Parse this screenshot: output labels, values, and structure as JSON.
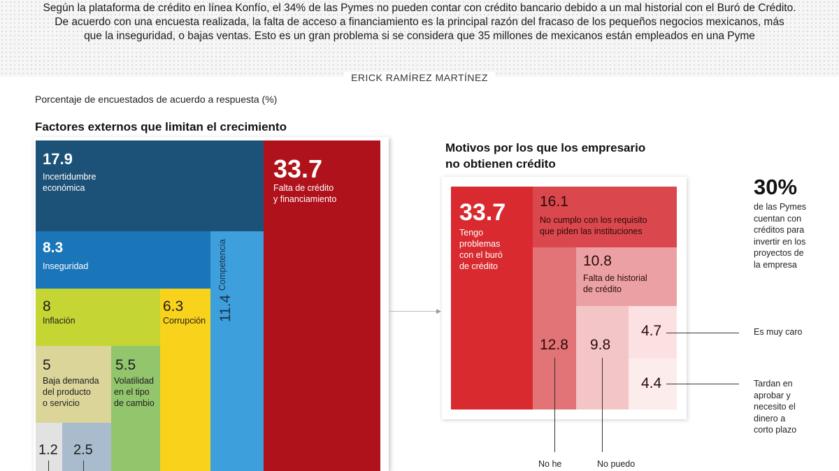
{
  "header": {
    "intro_lines": [
      "Según la plataforma de crédito en línea Konfío, el 34% de las Pymes no pueden contar con crédito bancario debido a un mal historial con el Buró de Crédito.",
      "De acuerdo con una encuesta realizada, la falta de acceso a financiamiento es la principal razón del fracaso de los pequeños negocios mexicanos, más",
      "que la inseguridad, o bajas ventas. Esto es un gran problema si se considera que 35 millones de mexicanos están empleados en una Pyme"
    ],
    "author": "ERICK RAMÍREZ MARTÍNEZ",
    "subtitle": "Porcentaje de encuestados de acuerdo a respuesta (%)"
  },
  "chart_data": [
    {
      "type": "treemap",
      "title": "Factores externos que limitan el crecimiento",
      "items": [
        {
          "value": 17.9,
          "value_label": "17.9",
          "label_lines": [
            "Incertidumbre",
            "económica"
          ],
          "color": "#1d5278"
        },
        {
          "value": 33.7,
          "value_label": "33.7",
          "label_lines": [
            "Falta de crédito",
            "y financiamiento"
          ],
          "color": "#b0121b"
        },
        {
          "value": 8.3,
          "value_label": "8.3",
          "label_lines": [
            "Inseguridad"
          ],
          "color": "#1a76b9"
        },
        {
          "value": 11.4,
          "value_label": "11.4",
          "label_lines": [
            "Competencia"
          ],
          "color": "#3da0dc"
        },
        {
          "value": 8,
          "value_label": "8",
          "label_lines": [
            "Inflación"
          ],
          "color": "#c5d634"
        },
        {
          "value": 6.3,
          "value_label": "6.3",
          "label_lines": [
            "Corrupción"
          ],
          "color": "#f8d21b"
        },
        {
          "value": 5,
          "value_label": "5",
          "label_lines": [
            "Baja demanda",
            "del producto",
            "o servicio"
          ],
          "color": "#dcd59a"
        },
        {
          "value": 5.5,
          "value_label": "5.5",
          "label_lines": [
            "Volatilidad",
            "en el tipo",
            "de cambio"
          ],
          "color": "#93c56d"
        },
        {
          "value": 1.2,
          "value_label": "1.2",
          "label_lines": [],
          "color": "#e2e2e2"
        },
        {
          "value": 2.5,
          "value_label": "2.5",
          "label_lines": [],
          "color": "#a9bccd"
        }
      ]
    },
    {
      "type": "treemap",
      "title_lines": [
        "Motivos por los que los empresario",
        " no obtienen crédito"
      ],
      "items": [
        {
          "value": 33.7,
          "value_label": "33.7",
          "label_lines": [
            "Tengo",
            "problemas",
            "con el buró",
            "de crédito"
          ],
          "color": "#d82a2f"
        },
        {
          "value": 16.1,
          "value_label": "16.1",
          "label_lines": [
            "No cumplo con los requisito",
            "que piden las instituciones"
          ],
          "color": "#da474c"
        },
        {
          "value": 10.8,
          "value_label": "10.8",
          "label_lines": [
            "Falta de historial",
            "de crédito"
          ],
          "color": "#eba1a4"
        },
        {
          "value": 12.8,
          "value_label": "12.8",
          "label_lines": [],
          "callout_lines": [
            "No he"
          ],
          "color": "#e27377"
        },
        {
          "value": 9.8,
          "value_label": "9.8",
          "label_lines": [],
          "callout_lines": [
            "No puedo"
          ],
          "color": "#f3c5c7"
        },
        {
          "value": 4.7,
          "value_label": "4.7",
          "label_lines": [],
          "callout_lines": [
            "Es muy caro"
          ],
          "color": "#fbe1e2"
        },
        {
          "value": 4.4,
          "value_label": "4.4",
          "label_lines": [],
          "callout_lines": [
            "Tardan en",
            "aprobar y",
            "necesito el",
            "dinero a",
            "corto plazo"
          ],
          "color": "#fcecec"
        }
      ]
    }
  ],
  "side_note": {
    "value": "30%",
    "lines": [
      "de las Pymes",
      "cuentan con",
      "créditos para",
      "invertir en los",
      "proyectos de",
      "la empresa"
    ]
  }
}
